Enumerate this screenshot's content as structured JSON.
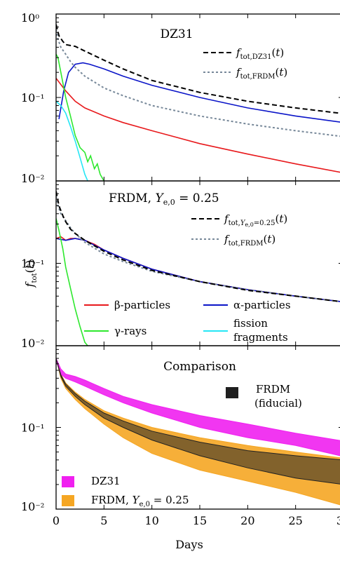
{
  "chart_data": [
    {
      "type": "line",
      "title": "DZ31",
      "xlim": [
        0,
        30
      ],
      "ylim": [
        0.01,
        1
      ],
      "yscale": "log",
      "y_ticks": [
        "10⁻²",
        "10⁻¹",
        "10⁰"
      ],
      "legend": "top-right",
      "series": [
        {
          "name": "f_tot,DZ31(t)",
          "color": "#000000",
          "dash": "dashed",
          "x": [
            0,
            0.3,
            0.7,
            1,
            2,
            3,
            5,
            7,
            10,
            15,
            20,
            25,
            30
          ],
          "y": [
            0.75,
            0.55,
            0.47,
            0.43,
            0.41,
            0.36,
            0.28,
            0.22,
            0.16,
            0.115,
            0.09,
            0.075,
            0.064
          ]
        },
        {
          "name": "f_tot,FRDM(t)",
          "color": "#778899",
          "dash": "dotted",
          "x": [
            0,
            0.2,
            0.5,
            1,
            1.5,
            2,
            3,
            5,
            7,
            10,
            15,
            20,
            25,
            30
          ],
          "y": [
            0.65,
            0.5,
            0.4,
            0.33,
            0.27,
            0.23,
            0.18,
            0.13,
            0.105,
            0.08,
            0.06,
            0.048,
            0.04,
            0.034
          ]
        },
        {
          "name": "",
          "color": "#e8191c",
          "dash": "solid",
          "x": [
            0,
            1,
            2,
            3,
            5,
            7,
            10,
            15,
            20,
            25,
            30
          ],
          "y": [
            0.17,
            0.12,
            0.09,
            0.075,
            0.06,
            0.05,
            0.04,
            0.028,
            0.021,
            0.016,
            0.0125
          ]
        },
        {
          "name": "",
          "color": "#0a14c8",
          "dash": "solid",
          "x": [
            0.3,
            0.8,
            1.3,
            2,
            2.8,
            3.5,
            5,
            7,
            10,
            15,
            20,
            25,
            30
          ],
          "y": [
            0.055,
            0.12,
            0.2,
            0.25,
            0.26,
            0.25,
            0.22,
            0.18,
            0.14,
            0.1,
            0.075,
            0.06,
            0.05
          ]
        },
        {
          "name": "",
          "color": "#2ee82e",
          "dash": "solid",
          "x": [
            0,
            0.2,
            0.5,
            1,
            1.5,
            2,
            2.5,
            3,
            3.3,
            3.6,
            4,
            4.3,
            4.6,
            5
          ],
          "y": [
            0.33,
            0.3,
            0.2,
            0.1,
            0.06,
            0.035,
            0.025,
            0.022,
            0.017,
            0.02,
            0.014,
            0.016,
            0.012,
            0.01
          ]
        },
        {
          "name": "",
          "color": "#25e6f5",
          "dash": "solid",
          "x": [
            0,
            0.5,
            1,
            1.5,
            2,
            2.5,
            3,
            3.3
          ],
          "y": [
            0.09,
            0.08,
            0.065,
            0.045,
            0.03,
            0.019,
            0.012,
            0.01
          ]
        }
      ]
    },
    {
      "type": "line",
      "title": "FRDM, Y_e,0 = 0.25",
      "ylabel": "f_tot(t)",
      "xlim": [
        0,
        30
      ],
      "ylim": [
        0.01,
        1
      ],
      "yscale": "log",
      "y_ticks": [
        "10⁻²",
        "10⁻¹"
      ],
      "legend": "top-right",
      "series": [
        {
          "name": "f_tot,Ye,0=0.25(t)",
          "color": "#000000",
          "dash": "dashed",
          "x": [
            0,
            0.3,
            0.7,
            1,
            1.5,
            2,
            3,
            5,
            7,
            10,
            15,
            20,
            25,
            30
          ],
          "y": [
            0.75,
            0.5,
            0.38,
            0.32,
            0.26,
            0.23,
            0.19,
            0.14,
            0.11,
            0.082,
            0.06,
            0.047,
            0.04,
            0.034
          ]
        },
        {
          "name": "f_tot,FRDM(t)",
          "color": "#778899",
          "dash": "dotted",
          "x": [
            0,
            0.2,
            0.5,
            1,
            1.5,
            2,
            3,
            5,
            7,
            10,
            15,
            20,
            25,
            30
          ],
          "y": [
            0.65,
            0.5,
            0.4,
            0.33,
            0.27,
            0.23,
            0.18,
            0.13,
            0.105,
            0.08,
            0.06,
            0.048,
            0.04,
            0.034
          ]
        },
        {
          "name": "",
          "color": "#e8191c",
          "dash": "solid",
          "x": [
            0,
            0.5,
            1,
            1.5,
            2,
            3,
            4,
            5,
            7,
            10,
            15,
            20,
            25,
            30
          ],
          "y": [
            0.2,
            0.21,
            0.19,
            0.2,
            0.2,
            0.19,
            0.17,
            0.145,
            0.115,
            0.085,
            0.06,
            0.048,
            0.04,
            0.034
          ]
        },
        {
          "name": "",
          "color": "#0a14c8",
          "dash": "solid",
          "x": [
            0,
            1,
            2,
            3,
            5,
            7,
            10,
            15,
            20,
            25,
            30
          ],
          "y": [
            0.2,
            0.19,
            0.2,
            0.19,
            0.145,
            0.115,
            0.085,
            0.06,
            0.048,
            0.04,
            0.034
          ]
        },
        {
          "name": "",
          "color": "#2ee82e",
          "dash": "solid",
          "x": [
            0,
            0.3,
            0.7,
            1,
            1.5,
            2,
            2.5,
            3,
            3.3
          ],
          "y": [
            0.35,
            0.25,
            0.15,
            0.09,
            0.05,
            0.028,
            0.017,
            0.011,
            0.01
          ]
        }
      ],
      "legend_entries": [
        {
          "label": "β-particles",
          "color": "#e8191c"
        },
        {
          "label": "α-particles",
          "color": "#0a14c8"
        },
        {
          "label": "γ-rays",
          "color": "#2ee82e"
        },
        {
          "label": "fission fragments",
          "color": "#25e6f5"
        }
      ]
    },
    {
      "type": "area",
      "title": "Comparison",
      "xlabel": "Days",
      "xlim": [
        0,
        30
      ],
      "ylim": [
        0.01,
        1
      ],
      "yscale": "log",
      "x_ticks": [
        0,
        5,
        10,
        15,
        20,
        25,
        30
      ],
      "y_ticks": [
        "10⁻²",
        "10⁻¹"
      ],
      "legend": "top-right and bottom-left",
      "series": [
        {
          "name": "DZ31",
          "color": "#f020f0",
          "x": [
            0,
            0.5,
            1,
            2,
            3,
            5,
            7,
            10,
            15,
            20,
            25,
            30
          ],
          "upper": [
            0.7,
            0.52,
            0.45,
            0.42,
            0.38,
            0.3,
            0.24,
            0.19,
            0.14,
            0.11,
            0.085,
            0.068
          ],
          "lower": [
            0.65,
            0.45,
            0.4,
            0.36,
            0.32,
            0.25,
            0.2,
            0.15,
            0.1,
            0.075,
            0.06,
            0.044
          ]
        },
        {
          "name": "FRDM, Y_e,0 = 0.25",
          "color": "#f5a623",
          "x": [
            0,
            0.5,
            1,
            2,
            3,
            5,
            7,
            10,
            15,
            20,
            25,
            30
          ],
          "upper": [
            0.7,
            0.45,
            0.35,
            0.27,
            0.22,
            0.16,
            0.13,
            0.1,
            0.075,
            0.06,
            0.05,
            0.042
          ],
          "lower": [
            0.7,
            0.4,
            0.3,
            0.22,
            0.17,
            0.11,
            0.075,
            0.048,
            0.03,
            0.022,
            0.016,
            0.011
          ]
        },
        {
          "name": "FRDM (fiducial)",
          "color": "#222222",
          "x": [
            0,
            0.5,
            1,
            2,
            3,
            5,
            7,
            10,
            15,
            20,
            25,
            30
          ],
          "upper": [
            0.7,
            0.44,
            0.34,
            0.26,
            0.21,
            0.15,
            0.12,
            0.09,
            0.066,
            0.052,
            0.045,
            0.04
          ],
          "lower": [
            0.7,
            0.42,
            0.32,
            0.24,
            0.19,
            0.13,
            0.1,
            0.07,
            0.045,
            0.032,
            0.024,
            0.02
          ]
        }
      ]
    }
  ]
}
